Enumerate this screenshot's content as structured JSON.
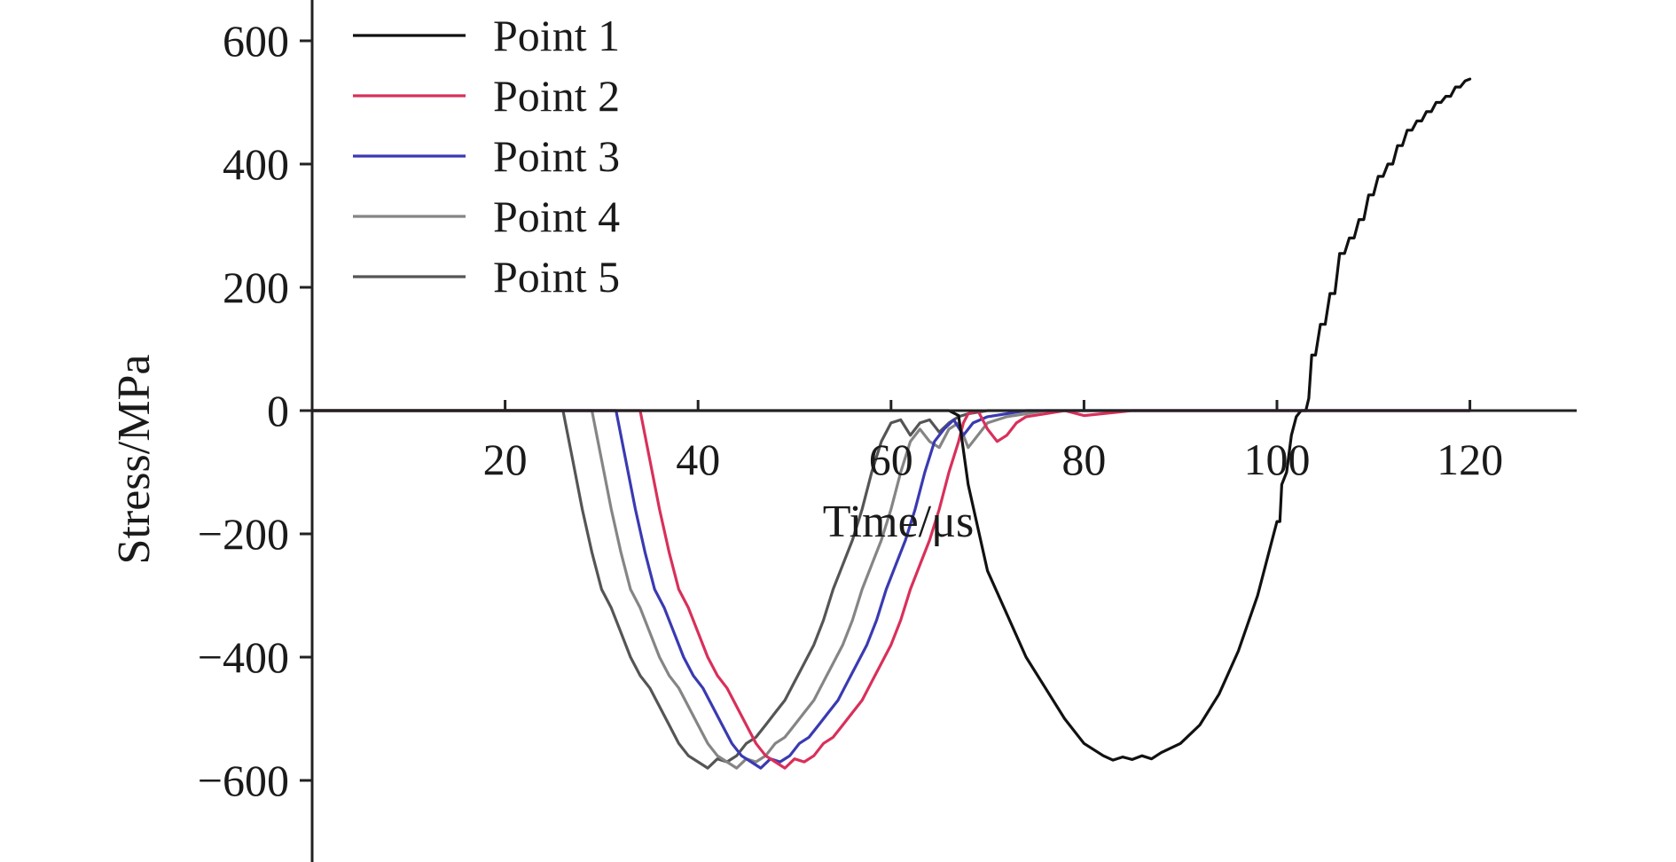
{
  "chart_data": {
    "type": "line",
    "title": "",
    "xlabel": "Time/μs",
    "ylabel": "Stress/MPa",
    "xlim": [
      0,
      130
    ],
    "ylim": [
      -730,
      660
    ],
    "xticks": [
      20,
      40,
      60,
      80,
      100,
      120
    ],
    "yticks": [
      600,
      400,
      200,
      0,
      -200,
      -400,
      -600
    ],
    "tick_labels_x": [
      "20",
      "40",
      "60",
      "80",
      "100",
      "120"
    ],
    "tick_labels_y": [
      "600",
      "400",
      "200",
      "0",
      "−200",
      "−400",
      "−600"
    ],
    "grid": false,
    "legend_position": "top-left",
    "series": [
      {
        "name": "Point 1",
        "color": "#111111",
        "x": [
          0,
          66,
          67,
          68,
          70,
          72,
          74,
          76,
          78,
          80,
          82,
          83,
          84,
          85,
          86,
          87,
          88,
          90,
          92,
          94,
          96,
          98,
          99,
          100,
          100.3,
          100.5,
          101,
          101.5,
          102,
          102.5,
          103,
          103.3,
          103.6,
          104,
          104.5,
          105,
          105.5,
          106,
          106.5,
          107,
          107.5,
          108,
          108.5,
          109,
          109.5,
          110,
          110.5,
          111,
          111.5,
          112,
          112.5,
          113,
          113.5,
          114,
          114.5,
          115,
          115.5,
          116,
          116.5,
          117,
          117.5,
          118,
          118.5,
          119,
          119.5,
          120
        ],
        "y": [
          0,
          0,
          -8,
          -120,
          -260,
          -330,
          -400,
          -450,
          -500,
          -540,
          -560,
          -567,
          -562,
          -566,
          -560,
          -565,
          -555,
          -540,
          -510,
          -460,
          -390,
          -300,
          -240,
          -180,
          -180,
          -120,
          -100,
          -40,
          -10,
          0,
          0,
          20,
          90,
          90,
          140,
          140,
          190,
          190,
          255,
          255,
          280,
          280,
          310,
          310,
          350,
          350,
          380,
          380,
          400,
          400,
          430,
          430,
          455,
          455,
          470,
          470,
          485,
          485,
          500,
          500,
          510,
          510,
          525,
          525,
          535,
          538
        ]
      },
      {
        "name": "Point 2",
        "color": "#d8305a",
        "x": [
          0,
          34,
          35,
          36,
          37,
          38,
          39,
          40,
          41,
          42,
          43,
          44,
          45,
          46,
          47,
          48,
          49,
          50,
          51,
          52,
          53,
          54,
          55,
          56,
          57,
          58,
          59,
          60,
          61,
          62,
          63,
          64,
          65,
          66,
          67,
          67.5,
          68,
          69,
          70,
          71,
          72,
          73,
          74,
          76,
          78,
          80,
          85,
          90,
          100,
          110,
          120
        ],
        "y": [
          0,
          0,
          -80,
          -160,
          -230,
          -290,
          -320,
          -360,
          -400,
          -430,
          -450,
          -480,
          -510,
          -540,
          -560,
          -570,
          -580,
          -565,
          -570,
          -560,
          -540,
          -530,
          -510,
          -490,
          -470,
          -440,
          -410,
          -380,
          -340,
          -290,
          -250,
          -210,
          -160,
          -100,
          -50,
          -20,
          -5,
          0,
          -30,
          -50,
          -40,
          -20,
          -10,
          -5,
          0,
          -8,
          0,
          0,
          0,
          0,
          0
        ]
      },
      {
        "name": "Point 3",
        "color": "#3a3ab2",
        "x": [
          0,
          31.5,
          32.5,
          33.5,
          34.5,
          35.5,
          36.5,
          37.5,
          38.5,
          39.5,
          40.5,
          41.5,
          42.5,
          43.5,
          44.5,
          45.5,
          46.5,
          47.5,
          48.5,
          49.5,
          50.5,
          51.5,
          52.5,
          53.5,
          54.5,
          55.5,
          56.5,
          57.5,
          58.5,
          59.5,
          60.5,
          61.5,
          62.5,
          63.5,
          64.5,
          65.5,
          66.5,
          67.5,
          68.5,
          70,
          72,
          74,
          76,
          80,
          90,
          100,
          110,
          120
        ],
        "y": [
          0,
          0,
          -80,
          -160,
          -230,
          -290,
          -320,
          -360,
          -400,
          -430,
          -450,
          -480,
          -510,
          -540,
          -560,
          -570,
          -580,
          -565,
          -570,
          -560,
          -540,
          -530,
          -510,
          -490,
          -470,
          -440,
          -410,
          -380,
          -340,
          -290,
          -250,
          -210,
          -160,
          -100,
          -50,
          -30,
          -15,
          -40,
          -20,
          -10,
          -5,
          0,
          0,
          0,
          0,
          0,
          0,
          0
        ]
      },
      {
        "name": "Point 4",
        "color": "#858585",
        "x": [
          0,
          29,
          30,
          31,
          32,
          33,
          34,
          35,
          36,
          37,
          38,
          39,
          40,
          41,
          42,
          43,
          44,
          45,
          46,
          47,
          48,
          49,
          50,
          51,
          52,
          53,
          54,
          55,
          56,
          57,
          58,
          59,
          60,
          61,
          62,
          63,
          64,
          65,
          66,
          67,
          68,
          69,
          70,
          72,
          74,
          76,
          80,
          90,
          100,
          110,
          120
        ],
        "y": [
          0,
          0,
          -80,
          -160,
          -230,
          -290,
          -320,
          -360,
          -400,
          -430,
          -450,
          -480,
          -510,
          -540,
          -560,
          -570,
          -580,
          -565,
          -570,
          -560,
          -540,
          -530,
          -510,
          -490,
          -470,
          -440,
          -410,
          -380,
          -340,
          -290,
          -250,
          -210,
          -160,
          -100,
          -50,
          -30,
          -50,
          -60,
          -30,
          -20,
          -60,
          -40,
          -20,
          -10,
          -5,
          0,
          0,
          0,
          0,
          0,
          0
        ]
      },
      {
        "name": "Point 5",
        "color": "#555555",
        "x": [
          0,
          26,
          27,
          28,
          29,
          30,
          31,
          32,
          33,
          34,
          35,
          36,
          37,
          38,
          39,
          40,
          41,
          42,
          43,
          44,
          45,
          46,
          47,
          48,
          49,
          50,
          51,
          52,
          53,
          54,
          55,
          56,
          57,
          58,
          59,
          60,
          61,
          62,
          63,
          64,
          65,
          66,
          67,
          68,
          70,
          72,
          75,
          80,
          90,
          100,
          110,
          120
        ],
        "y": [
          0,
          0,
          -80,
          -160,
          -230,
          -290,
          -320,
          -360,
          -400,
          -430,
          -450,
          -480,
          -510,
          -540,
          -560,
          -570,
          -580,
          -565,
          -570,
          -560,
          -540,
          -530,
          -510,
          -490,
          -470,
          -440,
          -410,
          -380,
          -340,
          -290,
          -250,
          -210,
          -160,
          -100,
          -50,
          -20,
          -15,
          -40,
          -20,
          -15,
          -35,
          -20,
          -10,
          -5,
          0,
          0,
          0,
          0,
          0,
          0,
          0,
          0
        ]
      }
    ]
  }
}
